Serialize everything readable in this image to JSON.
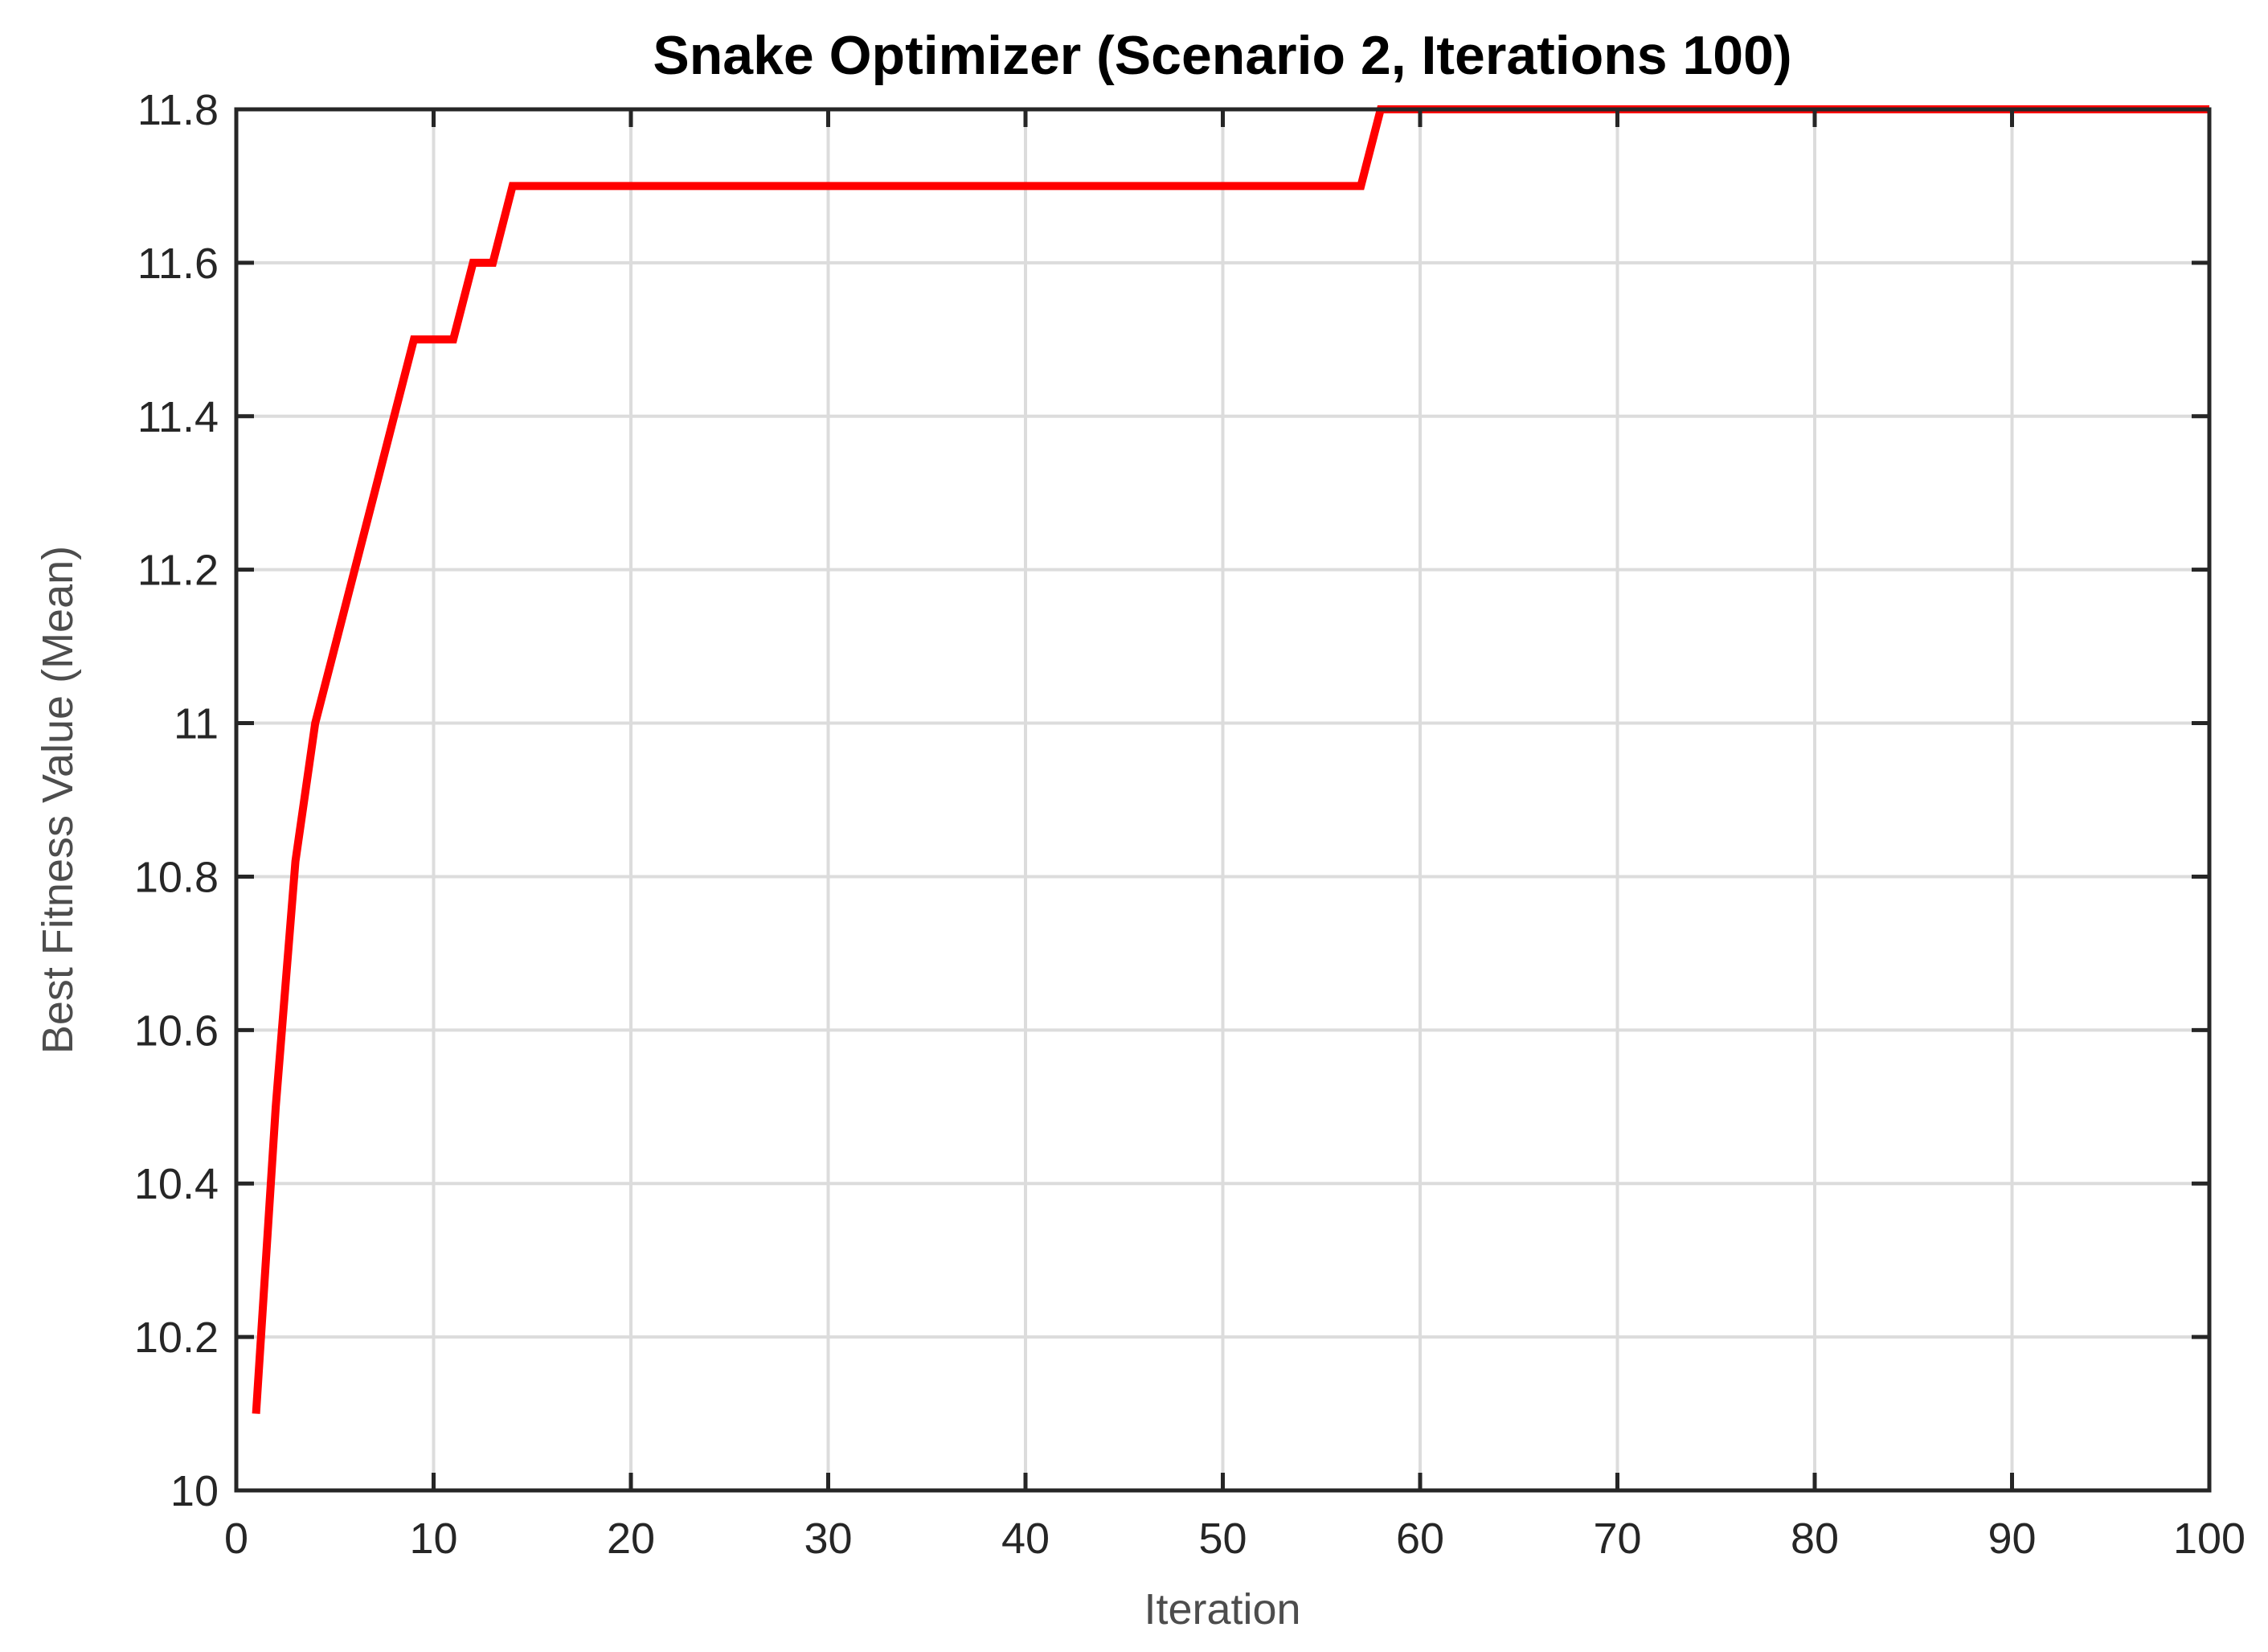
{
  "chart_data": {
    "type": "line",
    "title": "Snake Optimizer (Scenario 2, Iterations 100)",
    "xlabel": "Iteration",
    "ylabel": "Best Fitness Value (Mean)",
    "xlim": [
      0,
      100
    ],
    "ylim": [
      10,
      11.8
    ],
    "xticks": [
      0,
      10,
      20,
      30,
      40,
      50,
      60,
      70,
      80,
      90,
      100
    ],
    "xtick_labels": [
      "0",
      "10",
      "20",
      "30",
      "40",
      "50",
      "60",
      "70",
      "80",
      "90",
      "100"
    ],
    "yticks": [
      10,
      10.2,
      10.4,
      10.6,
      10.8,
      11,
      11.2,
      11.4,
      11.6,
      11.8
    ],
    "ytick_labels": [
      "10",
      "10.2",
      "10.4",
      "10.6",
      "10.8",
      "11",
      "11.2",
      "11.4",
      "11.6",
      "11.8"
    ],
    "grid": true,
    "series": [
      {
        "color": "#ff0000",
        "x": [
          1,
          2,
          3,
          4,
          5,
          6,
          7,
          8,
          9,
          10,
          11,
          12,
          13,
          14,
          20,
          30,
          40,
          50,
          57,
          58,
          60,
          70,
          80,
          90,
          100
        ],
        "y": [
          10.1,
          10.5,
          10.82,
          11.0,
          11.1,
          11.2,
          11.3,
          11.4,
          11.5,
          11.5,
          11.5,
          11.6,
          11.6,
          11.7,
          11.7,
          11.7,
          11.7,
          11.7,
          11.7,
          11.8,
          11.8,
          11.8,
          11.8,
          11.8,
          11.8
        ]
      }
    ]
  }
}
